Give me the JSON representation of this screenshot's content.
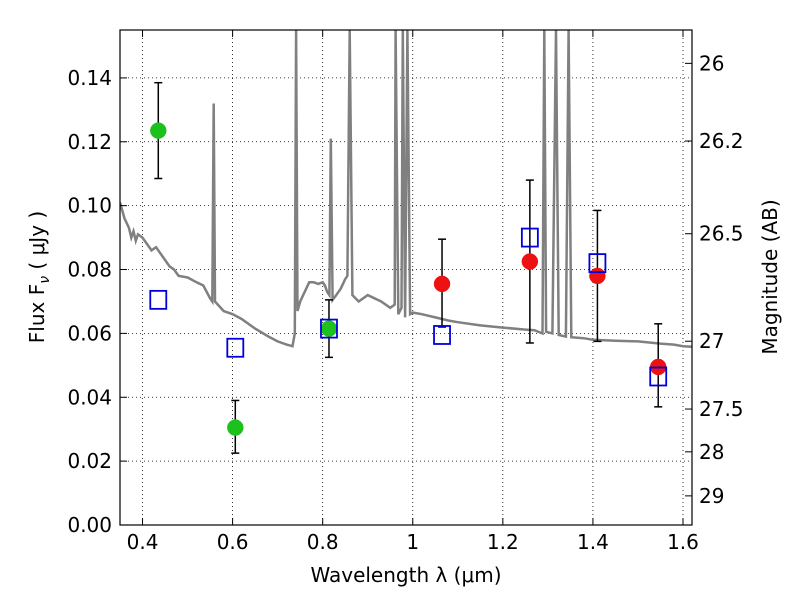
{
  "chart_data": {
    "type": "scatter",
    "xlabel": "Wavelength  λ (μm)",
    "ylabel": "Flux  F",
    "ylabel_sub": "ν",
    "ylabel_unit": "  ( μJy )",
    "y2label": "Magnitude (AB)",
    "xlim": [
      0.35,
      1.62
    ],
    "ylim": [
      0.0,
      0.155
    ],
    "grid": true,
    "legend": "none",
    "x_ticks": [
      {
        "value": 0.4,
        "label": "0.4"
      },
      {
        "value": 0.6,
        "label": "0.6"
      },
      {
        "value": 0.8,
        "label": "0.8"
      },
      {
        "value": 1.0,
        "label": "1"
      },
      {
        "value": 1.2,
        "label": "1.2"
      },
      {
        "value": 1.4,
        "label": "1.4"
      },
      {
        "value": 1.6,
        "label": "1.6"
      }
    ],
    "y_ticks": [
      {
        "value": 0.0,
        "label": "0.00"
      },
      {
        "value": 0.02,
        "label": "0.02"
      },
      {
        "value": 0.04,
        "label": "0.04"
      },
      {
        "value": 0.06,
        "label": "0.06"
      },
      {
        "value": 0.08,
        "label": "0.08"
      },
      {
        "value": 0.1,
        "label": "0.10"
      },
      {
        "value": 0.12,
        "label": "0.12"
      },
      {
        "value": 0.14,
        "label": "0.14"
      }
    ],
    "y2_ticks": [
      {
        "mag": 26.0,
        "label": "26"
      },
      {
        "mag": 26.2,
        "label": "26.2"
      },
      {
        "mag": 26.5,
        "label": "26.5"
      },
      {
        "mag": 27.0,
        "label": "27"
      },
      {
        "mag": 27.5,
        "label": "27.5"
      },
      {
        "mag": 28.0,
        "label": "28"
      },
      {
        "mag": 29.0,
        "label": "29"
      }
    ],
    "series": [
      {
        "color": "#1dc11d",
        "marker": "circle",
        "points": [
          {
            "x": 0.435,
            "y": 0.1235,
            "err_lo": 0.015,
            "err_hi": 0.015
          },
          {
            "x": 0.606,
            "y": 0.0305,
            "err_lo": 0.008,
            "err_hi": 0.0085
          },
          {
            "x": 0.814,
            "y": 0.0615,
            "err_lo": 0.009,
            "err_hi": 0.009
          }
        ]
      },
      {
        "color": "#ee1111",
        "marker": "circle",
        "points": [
          {
            "x": 1.065,
            "y": 0.0755,
            "err_lo": 0.0135,
            "err_hi": 0.014
          },
          {
            "x": 1.26,
            "y": 0.0825,
            "err_lo": 0.0255,
            "err_hi": 0.0255
          },
          {
            "x": 1.41,
            "y": 0.078,
            "err_lo": 0.0205,
            "err_hi": 0.0205
          },
          {
            "x": 1.545,
            "y": 0.0495,
            "err_lo": 0.0125,
            "err_hi": 0.0135
          }
        ]
      },
      {
        "color": "#0000dd",
        "marker": "open-square",
        "points": [
          {
            "x": 0.435,
            "y": 0.0705
          },
          {
            "x": 0.606,
            "y": 0.0555
          },
          {
            "x": 0.814,
            "y": 0.0615
          },
          {
            "x": 1.065,
            "y": 0.0595
          },
          {
            "x": 1.26,
            "y": 0.09
          },
          {
            "x": 1.41,
            "y": 0.082
          },
          {
            "x": 1.545,
            "y": 0.0465
          }
        ]
      }
    ],
    "model_spectrum": {
      "color": "#808080",
      "points": [
        [
          0.35,
          0.101
        ],
        [
          0.36,
          0.096
        ],
        [
          0.37,
          0.093
        ],
        [
          0.375,
          0.09
        ],
        [
          0.38,
          0.092
        ],
        [
          0.385,
          0.089
        ],
        [
          0.39,
          0.091
        ],
        [
          0.4,
          0.09
        ],
        [
          0.41,
          0.088
        ],
        [
          0.42,
          0.086
        ],
        [
          0.43,
          0.087
        ],
        [
          0.44,
          0.085
        ],
        [
          0.45,
          0.083
        ],
        [
          0.46,
          0.081
        ],
        [
          0.47,
          0.08
        ],
        [
          0.48,
          0.078
        ],
        [
          0.5,
          0.0775
        ],
        [
          0.52,
          0.076
        ],
        [
          0.535,
          0.075
        ],
        [
          0.55,
          0.071
        ],
        [
          0.555,
          0.07
        ],
        [
          0.558,
          0.132
        ],
        [
          0.561,
          0.07
        ],
        [
          0.58,
          0.067
        ],
        [
          0.6,
          0.066
        ],
        [
          0.62,
          0.0645
        ],
        [
          0.65,
          0.0615
        ],
        [
          0.68,
          0.059
        ],
        [
          0.7,
          0.0575
        ],
        [
          0.72,
          0.0565
        ],
        [
          0.733,
          0.056
        ],
        [
          0.738,
          0.06
        ],
        [
          0.741,
          0.155
        ],
        [
          0.744,
          0.067
        ],
        [
          0.75,
          0.07
        ],
        [
          0.76,
          0.073
        ],
        [
          0.77,
          0.076
        ],
        [
          0.78,
          0.076
        ],
        [
          0.79,
          0.0755
        ],
        [
          0.8,
          0.076
        ],
        [
          0.805,
          0.075
        ],
        [
          0.81,
          0.073
        ],
        [
          0.815,
          0.072
        ],
        [
          0.818,
          0.121
        ],
        [
          0.822,
          0.0705
        ],
        [
          0.83,
          0.072
        ],
        [
          0.84,
          0.074
        ],
        [
          0.85,
          0.077
        ],
        [
          0.855,
          0.078
        ],
        [
          0.86,
          0.155
        ],
        [
          0.866,
          0.072
        ],
        [
          0.88,
          0.07
        ],
        [
          0.9,
          0.072
        ],
        [
          0.93,
          0.07
        ],
        [
          0.95,
          0.068
        ],
        [
          0.96,
          0.069
        ],
        [
          0.962,
          0.155
        ],
        [
          0.968,
          0.066
        ],
        [
          0.975,
          0.068
        ],
        [
          0.978,
          0.155
        ],
        [
          0.983,
          0.065
        ],
        [
          0.988,
          0.155
        ],
        [
          0.994,
          0.066
        ],
        [
          1.0,
          0.0665
        ],
        [
          1.02,
          0.066
        ],
        [
          1.05,
          0.065
        ],
        [
          1.08,
          0.064
        ],
        [
          1.1,
          0.0635
        ],
        [
          1.15,
          0.0625
        ],
        [
          1.2,
          0.0618
        ],
        [
          1.25,
          0.0612
        ],
        [
          1.27,
          0.061
        ],
        [
          1.288,
          0.06
        ],
        [
          1.292,
          0.155
        ],
        [
          1.296,
          0.0605
        ],
        [
          1.31,
          0.06
        ],
        [
          1.318,
          0.155
        ],
        [
          1.324,
          0.0595
        ],
        [
          1.34,
          0.059
        ],
        [
          1.346,
          0.155
        ],
        [
          1.352,
          0.0588
        ],
        [
          1.38,
          0.0585
        ],
        [
          1.4,
          0.058
        ],
        [
          1.45,
          0.0577
        ],
        [
          1.5,
          0.0575
        ],
        [
          1.55,
          0.0568
        ],
        [
          1.58,
          0.0565
        ],
        [
          1.6,
          0.056
        ],
        [
          1.62,
          0.0558
        ]
      ]
    }
  }
}
